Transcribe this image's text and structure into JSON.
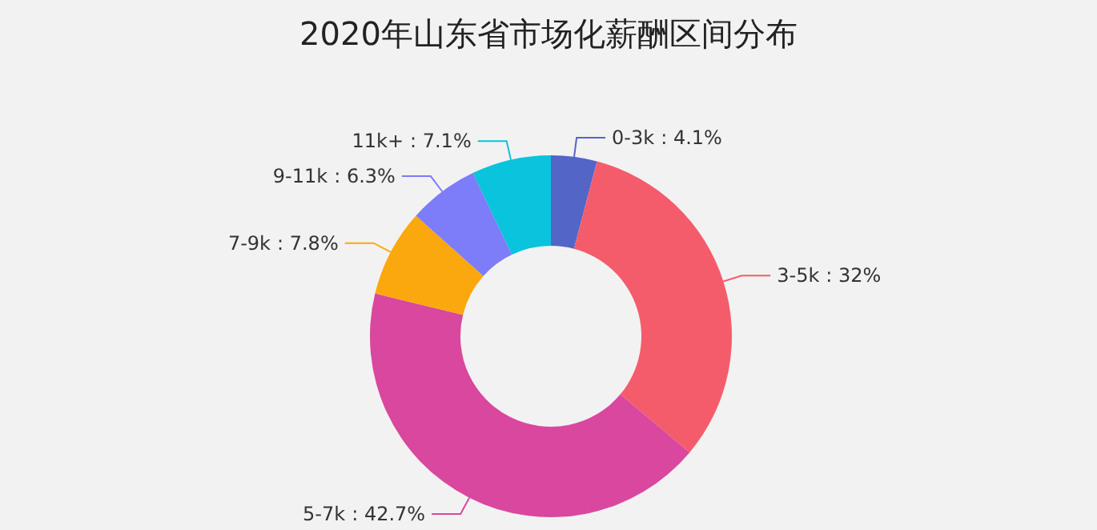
{
  "chart_data": {
    "type": "donut",
    "title": "2020年山东省市场化薪酬区间分布",
    "categories": [
      "0-3k",
      "3-5k",
      "5-7k",
      "7-9k",
      "9-11k",
      "11k+"
    ],
    "values": [
      4.1,
      32,
      42.7,
      7.8,
      6.3,
      7.1
    ],
    "colors": [
      "#5465c8",
      "#f45c6c",
      "#d9479e",
      "#fba80e",
      "#7d7cf9",
      "#0ac3dc"
    ],
    "value_labels": [
      ": 4.1%",
      ": 32%",
      ": 42.7%",
      ": 7.8%",
      ": 6.3%",
      ": 7.1%"
    ],
    "legend": false
  }
}
